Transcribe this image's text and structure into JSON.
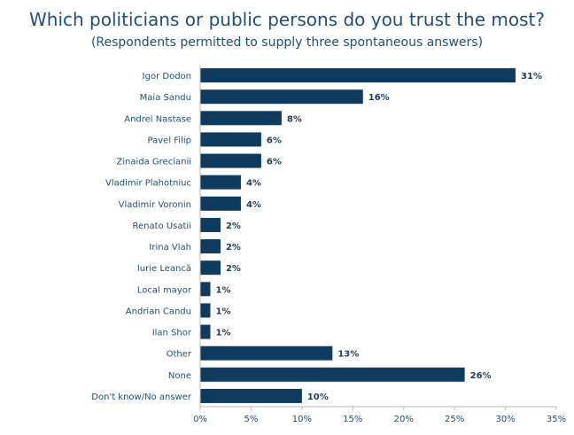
{
  "chart_data": {
    "type": "bar",
    "orientation": "horizontal",
    "title": "Which politicians or public persons do you trust the most?",
    "subtitle": "(Respondents permitted to supply three spontaneous answers)",
    "categories": [
      "Igor Dodon",
      "Maia Sandu",
      "Andrei Nastase",
      "Pavel Filip",
      "Zinaida Grecianii",
      "Vladimir Plahotniuc",
      "Vladimir Voronin",
      "Renato Usatii",
      "Irina Vlah",
      "Iurie Leancă",
      "Local mayor",
      "Andrian Candu",
      "Ilan Shor",
      "Other",
      "None",
      "Don't know/No answer"
    ],
    "values": [
      31,
      16,
      8,
      6,
      6,
      4,
      4,
      2,
      2,
      2,
      1,
      1,
      1,
      13,
      26,
      10
    ],
    "value_labels": [
      "31%",
      "16%",
      "8%",
      "6%",
      "6%",
      "4%",
      "4%",
      "2%",
      "2%",
      "2%",
      "1%",
      "1%",
      "1%",
      "13%",
      "26%",
      "10%"
    ],
    "xlim": [
      0,
      35
    ],
    "xticks": [
      0,
      5,
      10,
      15,
      20,
      25,
      30,
      35
    ],
    "xtick_labels": [
      "0%",
      "5%",
      "10%",
      "15%",
      "20%",
      "25%",
      "30%",
      "35%"
    ],
    "xlabel": "",
    "ylabel": "",
    "grid": false,
    "legend": "none",
    "bar_color": "#0f3b5f"
  }
}
